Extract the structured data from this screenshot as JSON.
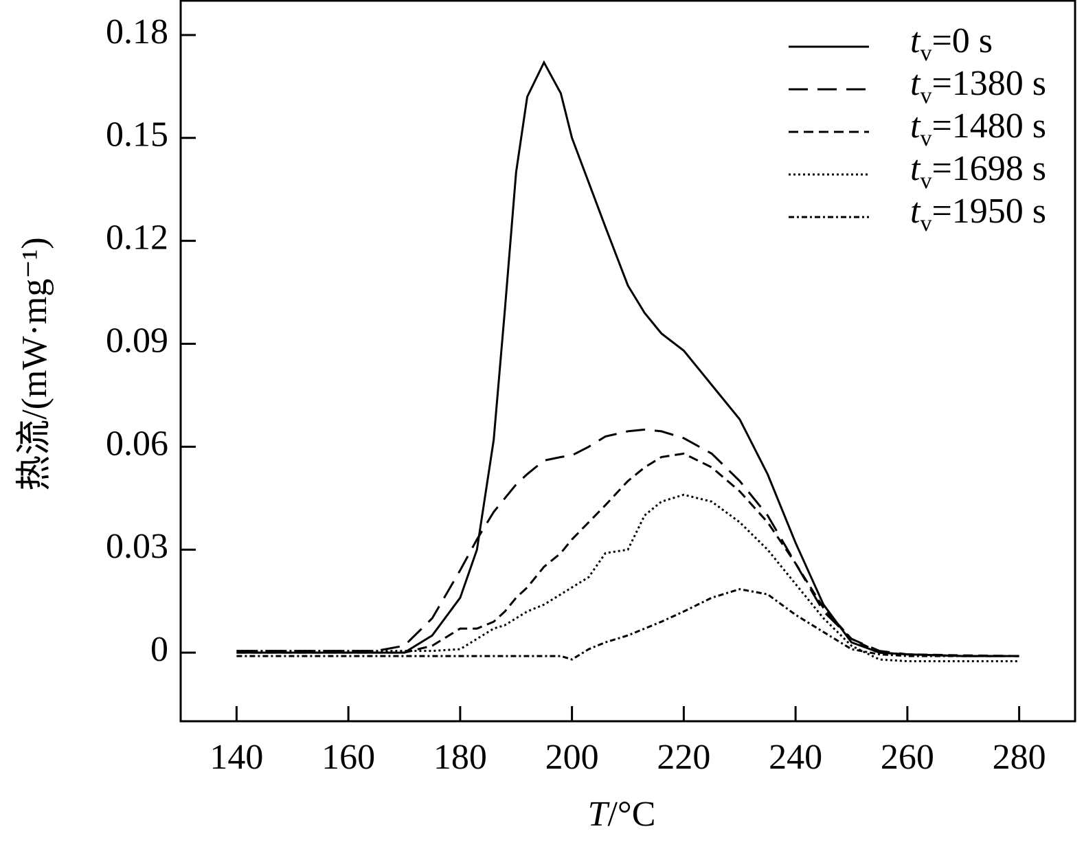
{
  "chart_data": {
    "type": "line",
    "xlabel": "T/°C",
    "ylabel": "热流/(mW·mg⁻¹)",
    "x": [
      140,
      150,
      160,
      165,
      170,
      175,
      180,
      183,
      186,
      188,
      190,
      192,
      195,
      198,
      200,
      203,
      206,
      210,
      213,
      216,
      220,
      225,
      230,
      235,
      240,
      245,
      250,
      255,
      260,
      270,
      280
    ],
    "series": [
      {
        "name": "tv=0 s",
        "color": "#000000",
        "dash": "none",
        "values": [
          0,
          0,
          0,
          0,
          0,
          0.005,
          0.016,
          0.03,
          0.062,
          0.1,
          0.14,
          0.162,
          0.172,
          0.163,
          0.15,
          0.137,
          0.124,
          0.107,
          0.099,
          0.093,
          0.088,
          0.078,
          0.068,
          0.052,
          0.032,
          0.014,
          0.003,
          0,
          -0.0005,
          -0.001,
          -0.001
        ]
      },
      {
        "name": "tv=1380 s",
        "color": "#000000",
        "dash": "28 14",
        "values": [
          0.0005,
          0.0005,
          0.0005,
          0.0005,
          0.002,
          0.01,
          0.024,
          0.033,
          0.041,
          0.045,
          0.049,
          0.052,
          0.056,
          0.057,
          0.0575,
          0.06,
          0.063,
          0.0645,
          0.065,
          0.0645,
          0.0625,
          0.058,
          0.05,
          0.04,
          0.026,
          0.012,
          0.004,
          0.0005,
          -0.0005,
          -0.001,
          -0.001
        ]
      },
      {
        "name": "tv=1480 s",
        "color": "#000000",
        "dash": "14 8",
        "values": [
          0,
          0,
          0,
          0,
          0,
          0.002,
          0.007,
          0.007,
          0.009,
          0.012,
          0.016,
          0.019,
          0.025,
          0.029,
          0.033,
          0.038,
          0.043,
          0.05,
          0.054,
          0.057,
          0.058,
          0.054,
          0.047,
          0.038,
          0.026,
          0.013,
          0.004,
          0,
          -0.0005,
          -0.0008,
          -0.001
        ]
      },
      {
        "name": "tv=1698 s",
        "color": "#000000",
        "dash": "3 4",
        "values": [
          0.0005,
          0.0005,
          0.0005,
          0.0005,
          0.0005,
          0.0005,
          0.001,
          0.004,
          0.007,
          0.008,
          0.01,
          0.012,
          0.014,
          0.017,
          0.019,
          0.022,
          0.029,
          0.03,
          0.04,
          0.044,
          0.046,
          0.044,
          0.038,
          0.03,
          0.02,
          0.01,
          0.002,
          -0.002,
          -0.0025,
          -0.0025,
          -0.0025
        ]
      },
      {
        "name": "tv=1950 s",
        "color": "#000000",
        "dash": "8 4 3 4",
        "values": [
          -0.001,
          -0.001,
          -0.001,
          -0.001,
          -0.001,
          -0.001,
          -0.001,
          -0.001,
          -0.001,
          -0.001,
          -0.001,
          -0.001,
          -0.001,
          -0.001,
          -0.002,
          0.001,
          0.003,
          0.005,
          0.007,
          0.009,
          0.012,
          0.016,
          0.0185,
          0.017,
          0.011,
          0.006,
          0.001,
          -0.0005,
          -0.001,
          -0.001,
          -0.001
        ]
      }
    ],
    "xlim": [
      130,
      290
    ],
    "ylim": [
      -0.02,
      0.19
    ],
    "xticks": [
      140,
      160,
      180,
      200,
      220,
      240,
      260,
      280
    ],
    "yticks": [
      0,
      0.03,
      0.06,
      0.09,
      0.12,
      0.15,
      0.18
    ],
    "legend": "upper right"
  }
}
